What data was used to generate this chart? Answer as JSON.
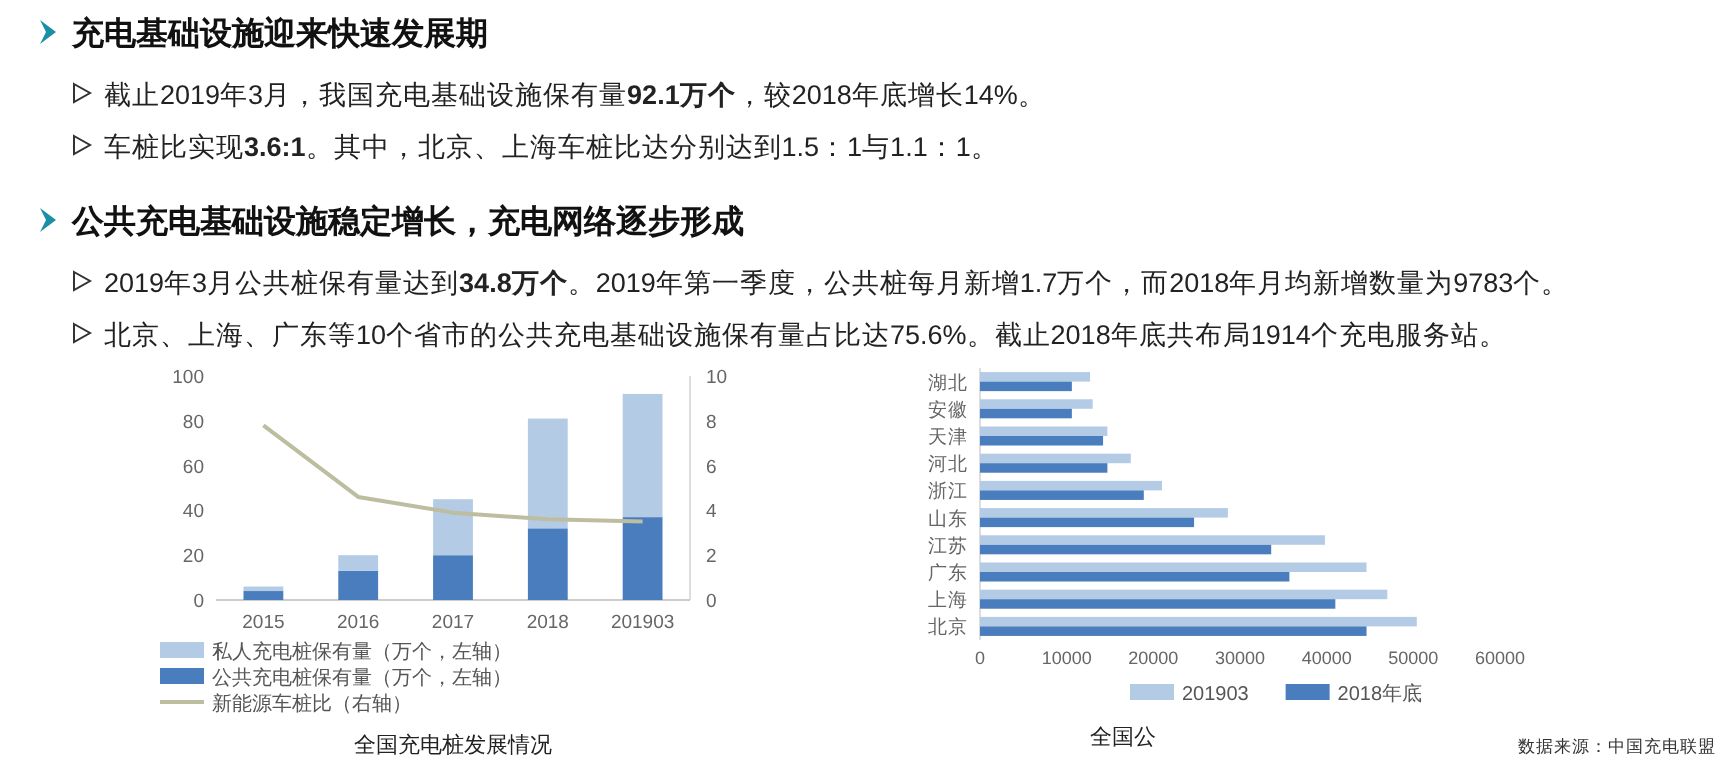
{
  "chart_data": [
    {
      "type": "other",
      "annotations": [
        "充电基础设施迎来快速发展期",
        "截止2019年3月，我国充电基础设施保有量**92.1万个**，较2018年底增长14%。",
        "车桩比实现**3.6:1**。其中，北京、上海车桩比达分别达到1.5：1与1.1：1。",
        "公共充电基础设施稳定增长，充电网络逐步形成",
        "2019年3月公共桩保有量达到**34.8万个**。2019年第一季度，公共桩每月新增1.7万个，而2018年月均新增数量为9783个。",
        "北京、上海、广东等10个省市的公共充电基础设施保有量占比达75.6%。截止2018年底共布局1914个充电服务站。"
      ]
    },
    {
      "type": "bar",
      "stacked": true,
      "title": "全国充电桩发展情况",
      "categories": [
        "2015",
        "2016",
        "2017",
        "2018",
        "201903"
      ],
      "series": [
        {
          "name": "公共充电桩保有量（万个，左轴）",
          "color": "#4a7dbd",
          "values": [
            4,
            13,
            20,
            32,
            37
          ]
        },
        {
          "name": "私人充电桩保有量（万个，左轴）",
          "color": "#b4cbe6",
          "values": [
            2,
            7,
            25,
            49,
            55
          ]
        },
        {
          "name": "新能源车桩比（右轴）",
          "type": "line",
          "axis": "y2",
          "color": "#bdbd9f",
          "values": [
            7.8,
            4.6,
            3.9,
            3.6,
            3.5
          ]
        }
      ],
      "ylim": [
        0,
        100
      ],
      "yticks": [
        0,
        20,
        40,
        60,
        80,
        100
      ],
      "y2lim": [
        0,
        10
      ],
      "y2ticks": [
        0,
        2,
        4,
        6,
        8,
        10
      ],
      "legend": "bottom"
    },
    {
      "type": "bar",
      "orientation": "horizontal",
      "title": "全国公",
      "categories": [
        "湖北",
        "安徽",
        "天津",
        "河北",
        "浙江",
        "山东",
        "江苏",
        "广东",
        "上海",
        "北京"
      ],
      "series": [
        {
          "name": "201903",
          "color": "#b4cbe6",
          "values": [
            12700,
            13000,
            14700,
            17400,
            21000,
            28600,
            39800,
            44600,
            47000,
            50400
          ]
        },
        {
          "name": "2018年底",
          "color": "#4a7dbd",
          "values": [
            10600,
            10600,
            14200,
            14700,
            18900,
            24700,
            33600,
            35700,
            41000,
            44600
          ]
        }
      ],
      "xlim": [
        0,
        60000
      ],
      "xticks": [
        0,
        10000,
        20000,
        30000,
        40000,
        50000,
        60000
      ],
      "legend": "bottom",
      "annotations": [
        "数据来源：中国充电联盟"
      ]
    }
  ]
}
